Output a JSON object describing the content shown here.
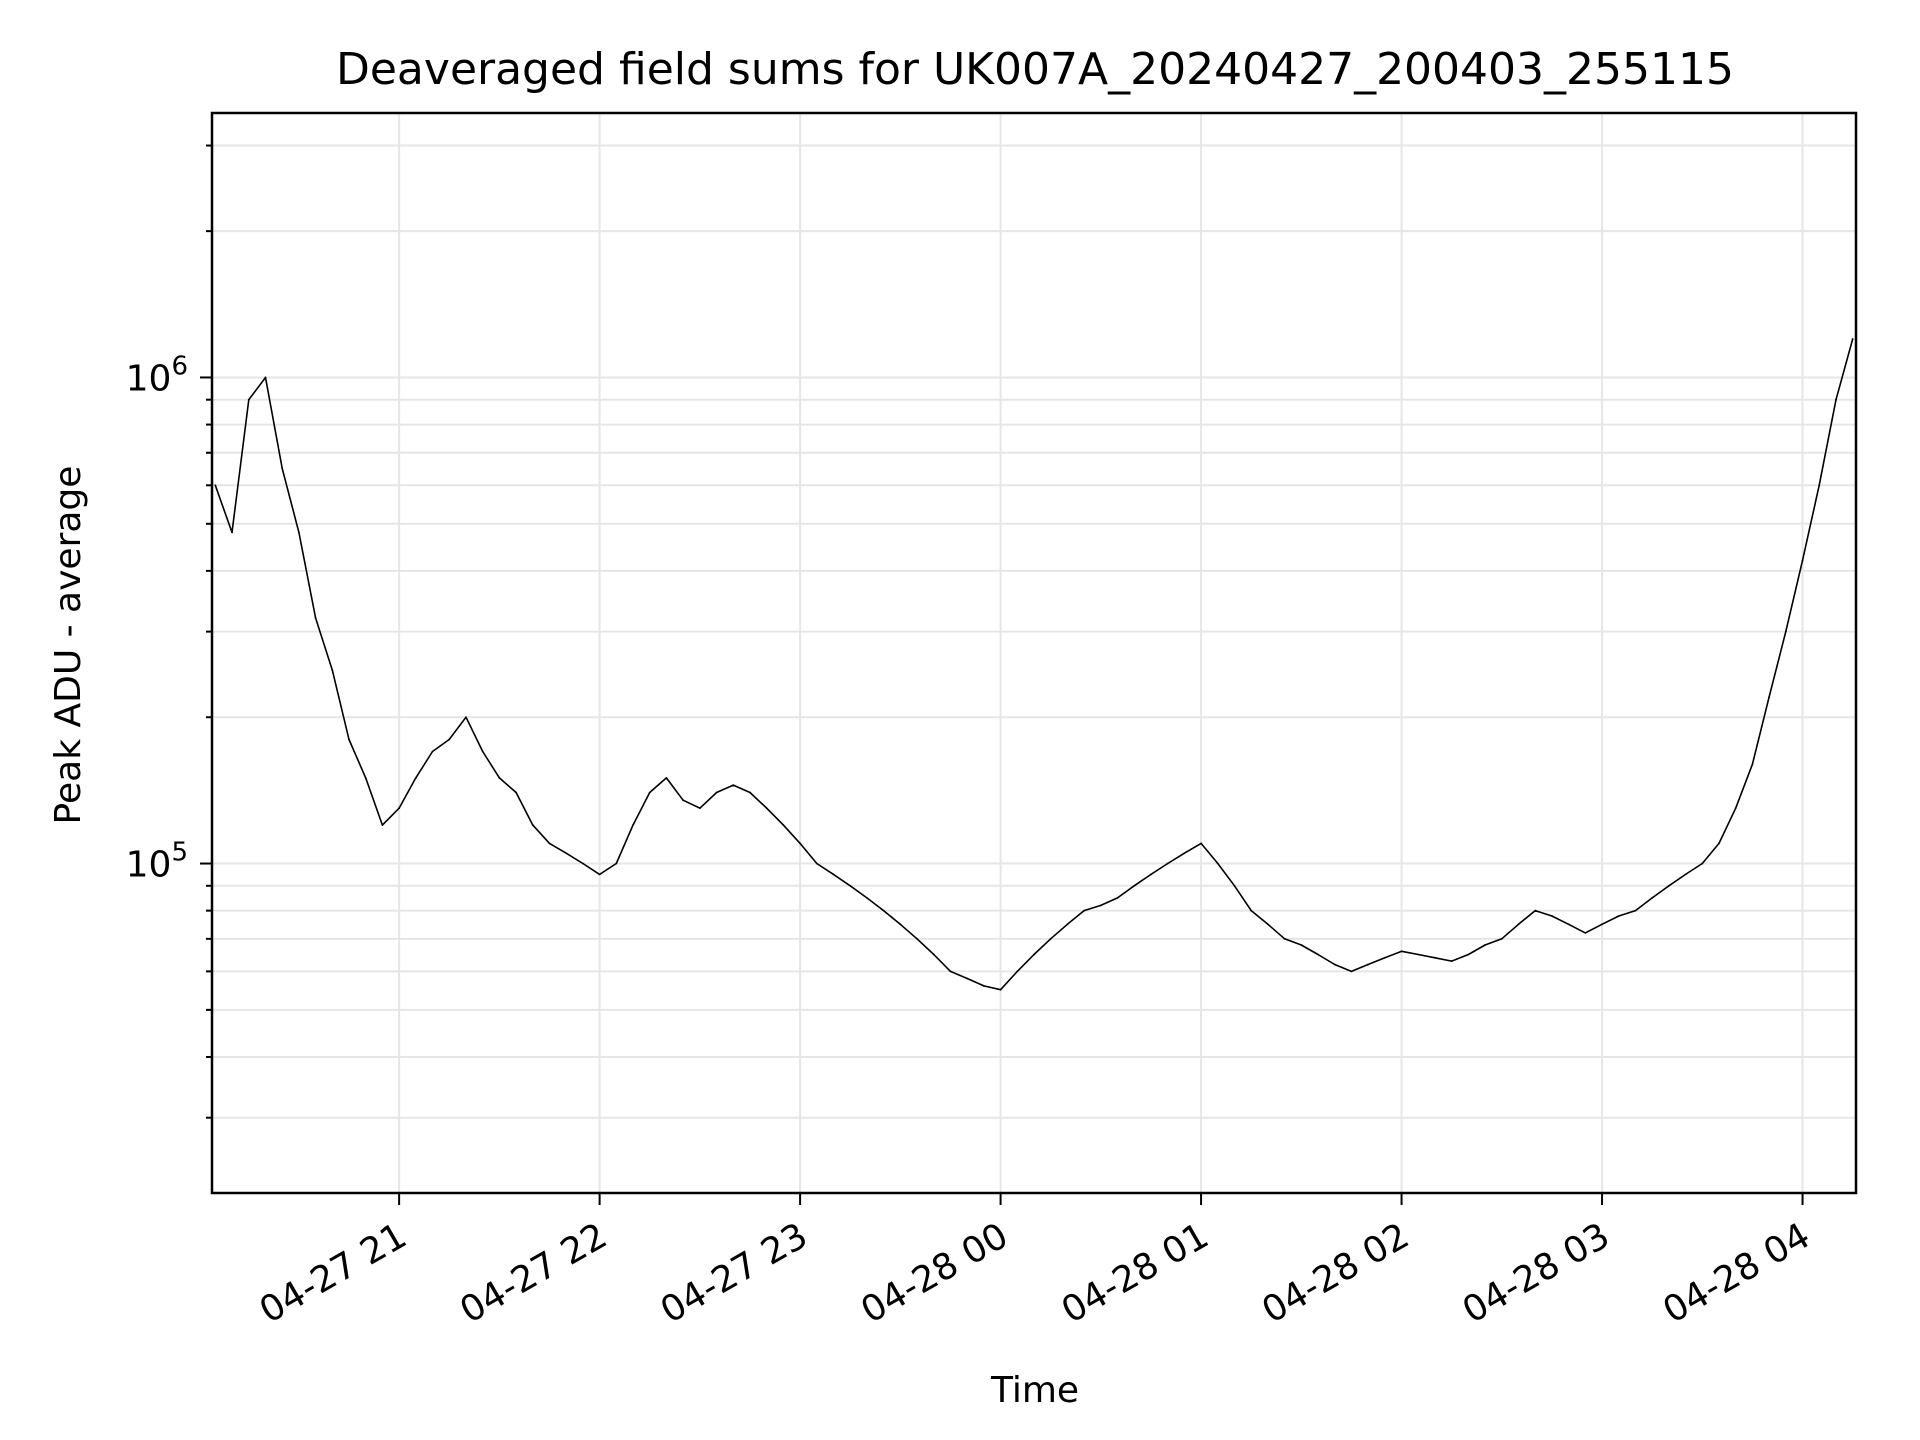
{
  "chart_data": {
    "type": "line",
    "title": "Deaveraged field sums for UK007A_20240427_200403_255115",
    "xlabel": "Time",
    "ylabel": "Peak ADU - average",
    "y_scale": "log",
    "grid": true,
    "line_color": "#000000",
    "grid_color": "#e6e6e6",
    "xlim": [
      "2024-04-27 20:04",
      "2024-04-28 04:16"
    ],
    "ylim": [
      21000,
      3500000
    ],
    "x_ticks": [
      {
        "value": "2024-04-27 21:00",
        "label": "04-27 21"
      },
      {
        "value": "2024-04-27 22:00",
        "label": "04-27 22"
      },
      {
        "value": "2024-04-27 23:00",
        "label": "04-27 23"
      },
      {
        "value": "2024-04-28 00:00",
        "label": "04-28 00"
      },
      {
        "value": "2024-04-28 01:00",
        "label": "04-28 01"
      },
      {
        "value": "2024-04-28 02:00",
        "label": "04-28 02"
      },
      {
        "value": "2024-04-28 03:00",
        "label": "04-28 03"
      },
      {
        "value": "2024-04-28 04:00",
        "label": "04-28 04"
      }
    ],
    "y_ticks": [
      {
        "value": 100000,
        "base": "10",
        "exp": "5"
      },
      {
        "value": 1000000,
        "base": "10",
        "exp": "6"
      }
    ],
    "series": [
      {
        "x": [
          "2024-04-27 20:05",
          "2024-04-27 20:10",
          "2024-04-27 20:15",
          "2024-04-27 20:20",
          "2024-04-27 20:25",
          "2024-04-27 20:30",
          "2024-04-27 20:35",
          "2024-04-27 20:40",
          "2024-04-27 20:45",
          "2024-04-27 20:50",
          "2024-04-27 20:55",
          "2024-04-27 21:00",
          "2024-04-27 21:05",
          "2024-04-27 21:10",
          "2024-04-27 21:15",
          "2024-04-27 21:20",
          "2024-04-27 21:25",
          "2024-04-27 21:30",
          "2024-04-27 21:35",
          "2024-04-27 21:40",
          "2024-04-27 21:45",
          "2024-04-27 21:50",
          "2024-04-27 21:55",
          "2024-04-27 22:00",
          "2024-04-27 22:05",
          "2024-04-27 22:10",
          "2024-04-27 22:15",
          "2024-04-27 22:20",
          "2024-04-27 22:25",
          "2024-04-27 22:30",
          "2024-04-27 22:35",
          "2024-04-27 22:40",
          "2024-04-27 22:45",
          "2024-04-27 22:50",
          "2024-04-27 22:55",
          "2024-04-27 23:00",
          "2024-04-27 23:05",
          "2024-04-27 23:10",
          "2024-04-27 23:15",
          "2024-04-27 23:20",
          "2024-04-27 23:25",
          "2024-04-27 23:30",
          "2024-04-27 23:35",
          "2024-04-27 23:40",
          "2024-04-27 23:45",
          "2024-04-27 23:50",
          "2024-04-27 23:55",
          "2024-04-28 00:00",
          "2024-04-28 00:05",
          "2024-04-28 00:10",
          "2024-04-28 00:15",
          "2024-04-28 00:20",
          "2024-04-28 00:25",
          "2024-04-28 00:30",
          "2024-04-28 00:35",
          "2024-04-28 00:40",
          "2024-04-28 00:45",
          "2024-04-28 00:50",
          "2024-04-28 00:55",
          "2024-04-28 01:00",
          "2024-04-28 01:05",
          "2024-04-28 01:10",
          "2024-04-28 01:15",
          "2024-04-28 01:20",
          "2024-04-28 01:25",
          "2024-04-28 01:30",
          "2024-04-28 01:35",
          "2024-04-28 01:40",
          "2024-04-28 01:45",
          "2024-04-28 01:50",
          "2024-04-28 01:55",
          "2024-04-28 02:00",
          "2024-04-28 02:05",
          "2024-04-28 02:10",
          "2024-04-28 02:15",
          "2024-04-28 02:20",
          "2024-04-28 02:25",
          "2024-04-28 02:30",
          "2024-04-28 02:35",
          "2024-04-28 02:40",
          "2024-04-28 02:45",
          "2024-04-28 02:50",
          "2024-04-28 02:55",
          "2024-04-28 03:00",
          "2024-04-28 03:05",
          "2024-04-28 03:10",
          "2024-04-28 03:15",
          "2024-04-28 03:20",
          "2024-04-28 03:25",
          "2024-04-28 03:30",
          "2024-04-28 03:35",
          "2024-04-28 03:40",
          "2024-04-28 03:45",
          "2024-04-28 03:50",
          "2024-04-28 03:55",
          "2024-04-28 04:00",
          "2024-04-28 04:05",
          "2024-04-28 04:10",
          "2024-04-28 04:15"
        ],
        "y": [
          600000,
          480000,
          900000,
          1000000,
          650000,
          480000,
          320000,
          250000,
          180000,
          150000,
          120000,
          130000,
          150000,
          170000,
          180000,
          200000,
          170000,
          150000,
          140000,
          120000,
          110000,
          105000,
          100000,
          95000,
          100000,
          120000,
          140000,
          150000,
          135000,
          130000,
          140000,
          145000,
          140000,
          130000,
          120000,
          110000,
          100000,
          95000,
          90000,
          85000,
          80000,
          75000,
          70000,
          65000,
          60000,
          58000,
          56000,
          55000,
          60000,
          65000,
          70000,
          75000,
          80000,
          82000,
          85000,
          90000,
          95000,
          100000,
          105000,
          110000,
          100000,
          90000,
          80000,
          75000,
          70000,
          68000,
          65000,
          62000,
          60000,
          62000,
          64000,
          66000,
          65000,
          64000,
          63000,
          65000,
          68000,
          70000,
          75000,
          80000,
          78000,
          75000,
          72000,
          75000,
          78000,
          80000,
          85000,
          90000,
          95000,
          100000,
          110000,
          130000,
          160000,
          220000,
          300000,
          420000,
          600000,
          900000,
          1200000
        ]
      }
    ]
  }
}
